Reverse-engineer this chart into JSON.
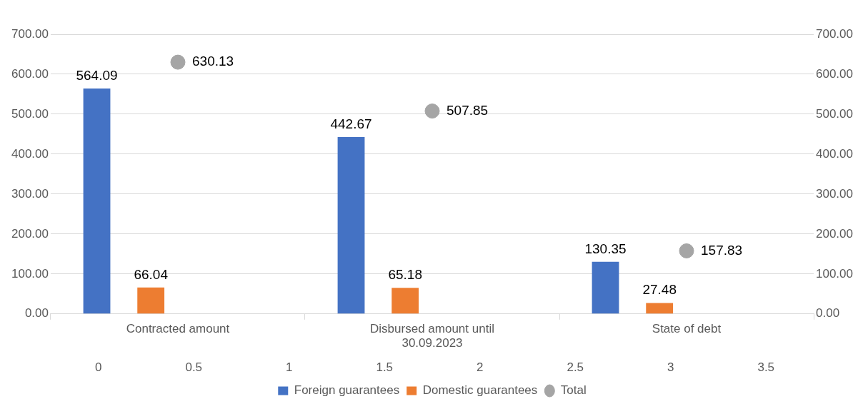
{
  "chart_data": {
    "type": "bar",
    "categories": [
      "Contracted amount",
      "Disbursed amount until 30.09.2023",
      "State of debt"
    ],
    "series": [
      {
        "name": "Foreign guarantees",
        "color": "#4472c4",
        "values": [
          564.09,
          442.67,
          130.35
        ]
      },
      {
        "name": "Domestic guarantees",
        "color": "#ed7d31",
        "values": [
          66.04,
          65.18,
          27.48
        ]
      },
      {
        "name": "Total",
        "type": "scatter",
        "color": "#a5a5a5",
        "x": [
          "Contracted amount",
          "Disbursed amount until 30.09.2023",
          "State of debt"
        ],
        "values": [
          630.13,
          507.85,
          157.83
        ]
      }
    ],
    "ylim": [
      0,
      700
    ],
    "yticks": [
      {
        "value": 0,
        "label": "0.00"
      },
      {
        "value": 100,
        "label": "100.00"
      },
      {
        "value": 200,
        "label": "200.00"
      },
      {
        "value": 300,
        "label": "300.00"
      },
      {
        "value": 400,
        "label": "400.00"
      },
      {
        "value": 500,
        "label": "500.00"
      },
      {
        "value": 600,
        "label": "600.00"
      },
      {
        "value": 700,
        "label": "700.00"
      }
    ],
    "y2lim": [
      0,
      700
    ],
    "y2ticks": [
      {
        "value": 0,
        "label": "0.00"
      },
      {
        "value": 100,
        "label": "100.00"
      },
      {
        "value": 200,
        "label": "200.00"
      },
      {
        "value": 300,
        "label": "300.00"
      },
      {
        "value": 400,
        "label": "400.00"
      },
      {
        "value": 500,
        "label": "500.00"
      },
      {
        "value": 600,
        "label": "600.00"
      },
      {
        "value": 700,
        "label": "700.00"
      }
    ],
    "x2lim": [
      0,
      3.5
    ],
    "x2ticks": [
      0,
      0.5,
      1,
      1.5,
      2,
      2.5,
      3,
      3.5
    ],
    "grid": "y",
    "legend": "bottom",
    "data_labels": true,
    "marker": "circle"
  }
}
